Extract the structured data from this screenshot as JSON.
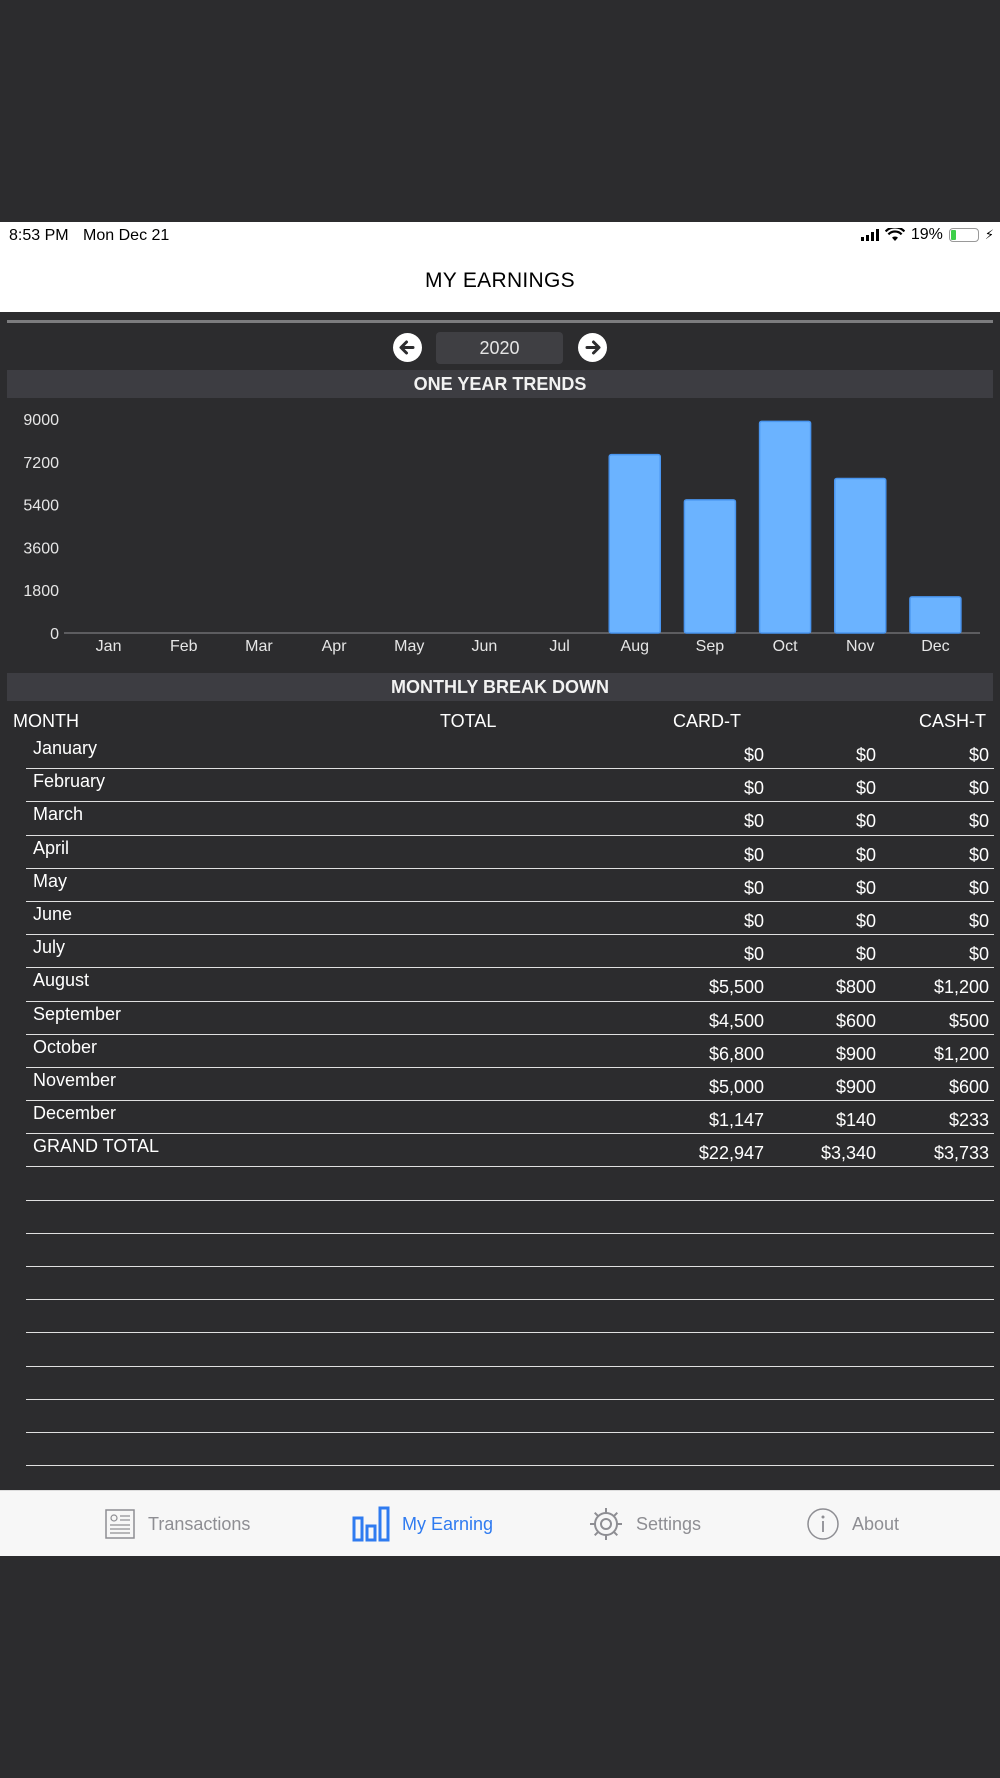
{
  "status_bar": {
    "time": "8:53 PM",
    "date": "Mon Dec 21",
    "battery": "19%",
    "icons": [
      "signal-icon",
      "wifi-icon",
      "battery-icon",
      "charging-icon"
    ]
  },
  "nav": {
    "title": "MY EARNINGS"
  },
  "year_selector": {
    "year": "2020",
    "prev_icon": "arrow-left-icon",
    "next_icon": "arrow-right-icon"
  },
  "chart_section": {
    "title": "ONE YEAR TRENDS"
  },
  "chart_data": {
    "type": "bar",
    "title": "ONE YEAR TRENDS",
    "categories": [
      "Jan",
      "Feb",
      "Mar",
      "Apr",
      "May",
      "Jun",
      "Jul",
      "Aug",
      "Sep",
      "Oct",
      "Nov",
      "Dec"
    ],
    "values": [
      0,
      0,
      0,
      0,
      0,
      0,
      0,
      7500,
      5600,
      8900,
      6500,
      1520
    ],
    "yticks": [
      "0",
      "1800",
      "3600",
      "5400",
      "7200",
      "9000"
    ],
    "ylim": [
      0,
      9000
    ],
    "bar_color": "#6bb3ff"
  },
  "breakdown": {
    "title": "MONTHLY BREAK DOWN",
    "headers": {
      "month": "MONTH",
      "total": "TOTAL",
      "card": "CARD-T",
      "cash": "CASH-T"
    },
    "rows": [
      {
        "month": "January",
        "v1": "$0",
        "v2": "$0",
        "v3": "$0"
      },
      {
        "month": "February",
        "v1": "$0",
        "v2": "$0",
        "v3": "$0"
      },
      {
        "month": "March",
        "v1": "$0",
        "v2": "$0",
        "v3": "$0"
      },
      {
        "month": "April",
        "v1": "$0",
        "v2": "$0",
        "v3": "$0"
      },
      {
        "month": "May",
        "v1": "$0",
        "v2": "$0",
        "v3": "$0"
      },
      {
        "month": "June",
        "v1": "$0",
        "v2": "$0",
        "v3": "$0"
      },
      {
        "month": "July",
        "v1": "$0",
        "v2": "$0",
        "v3": "$0"
      },
      {
        "month": "August",
        "v1": "$5,500",
        "v2": "$800",
        "v3": "$1,200"
      },
      {
        "month": "September",
        "v1": "$4,500",
        "v2": "$600",
        "v3": "$500"
      },
      {
        "month": "October",
        "v1": "$6,800",
        "v2": "$900",
        "v3": "$1,200"
      },
      {
        "month": "November",
        "v1": "$5,000",
        "v2": "$900",
        "v3": "$600"
      },
      {
        "month": "December",
        "v1": "$1,147",
        "v2": "$140",
        "v3": "$233"
      },
      {
        "month": "GRAND TOTAL",
        "v1": "$22,947",
        "v2": "$3,340",
        "v3": "$3,733"
      }
    ]
  },
  "tabs": [
    {
      "label": "Transactions",
      "icon": "transactions-icon",
      "active": false
    },
    {
      "label": "My Earning",
      "icon": "bar-chart-icon",
      "active": true
    },
    {
      "label": "Settings",
      "icon": "gear-icon",
      "active": false
    },
    {
      "label": "About",
      "icon": "info-icon",
      "active": false
    }
  ],
  "colors": {
    "accent": "#2f7bf0",
    "bar": "#6bb3ff",
    "background": "#2c2c2e"
  }
}
